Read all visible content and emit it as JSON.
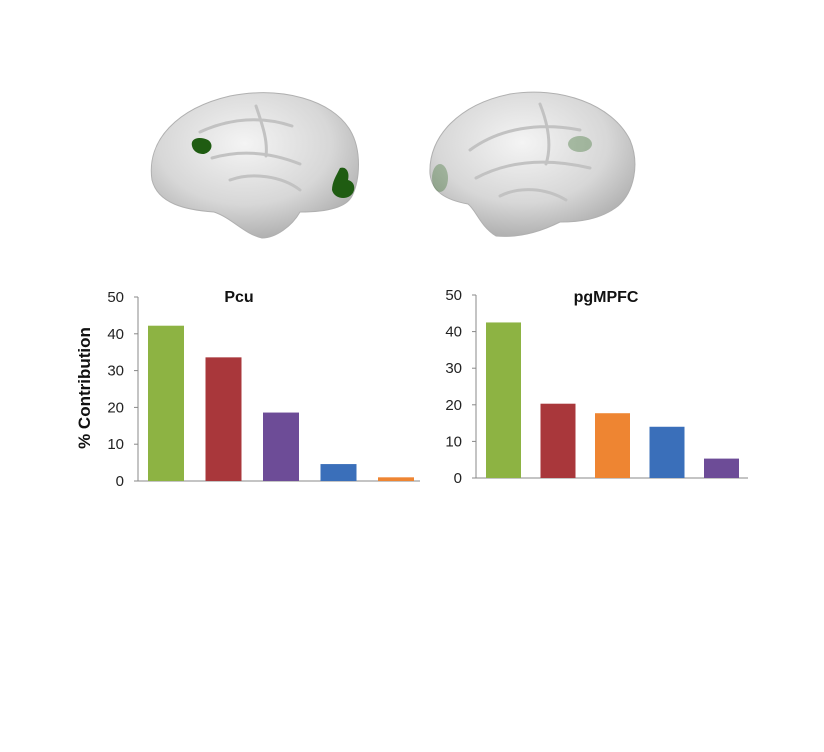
{
  "chart_data": [
    {
      "type": "bar",
      "title": "Pcu",
      "ylabel": "% Contribution",
      "xlabel": "",
      "ylim": [
        0,
        50
      ],
      "yticks": [
        0,
        10,
        20,
        30,
        40,
        50
      ],
      "categories": [
        "",
        "",
        "",
        "",
        ""
      ],
      "values": [
        42.2,
        33.6,
        18.6,
        4.6,
        1.0
      ],
      "colors": [
        "#8db343",
        "#a9373b",
        "#6d4c97",
        "#3a6fba",
        "#ee8532"
      ]
    },
    {
      "type": "bar",
      "title": "pgMPFC",
      "ylabel": "",
      "xlabel": "",
      "ylim": [
        0,
        50
      ],
      "yticks": [
        0,
        10,
        20,
        30,
        40,
        50
      ],
      "categories": [
        "",
        "",
        "",
        "",
        ""
      ],
      "values": [
        42.5,
        20.3,
        17.7,
        14.0,
        5.3
      ],
      "colors": [
        "#8db343",
        "#a9373b",
        "#ee8532",
        "#3a6fba",
        "#6d4c97"
      ]
    }
  ],
  "colors": {
    "highlight_region": "#1f5c12",
    "brain_surface": "#d9d9d9"
  }
}
